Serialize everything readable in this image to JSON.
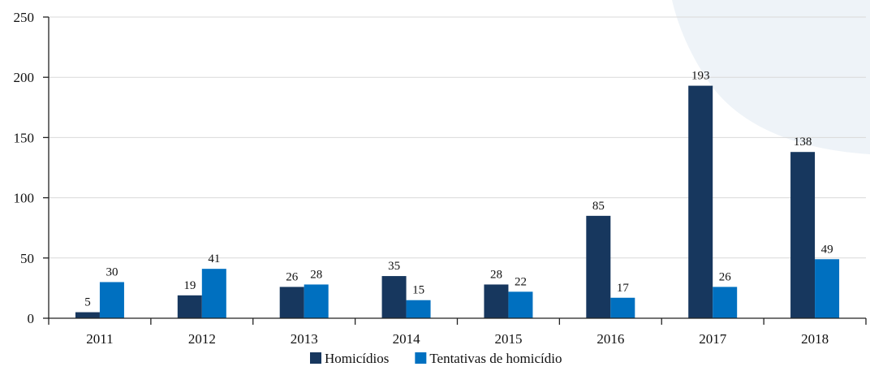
{
  "chart_data": {
    "type": "bar",
    "categories": [
      "2011",
      "2012",
      "2013",
      "2014",
      "2015",
      "2016",
      "2017",
      "2018"
    ],
    "series": [
      {
        "name": "Homicídios",
        "values": [
          5,
          19,
          26,
          35,
          28,
          85,
          193,
          138
        ],
        "color": "#17375e"
      },
      {
        "name": "Tentativas de homicídio",
        "values": [
          30,
          41,
          28,
          15,
          22,
          17,
          26,
          49
        ],
        "color": "#0070c0"
      }
    ],
    "ylim": [
      0,
      250
    ],
    "yticks": [
      0,
      50,
      100,
      150,
      200,
      250
    ],
    "grid": true,
    "legend_position": "bottom-center",
    "data_labels": true
  },
  "colors": {
    "grid": "#d9d9d9",
    "axis": "#222222",
    "background_shape": "#eef3f8"
  }
}
